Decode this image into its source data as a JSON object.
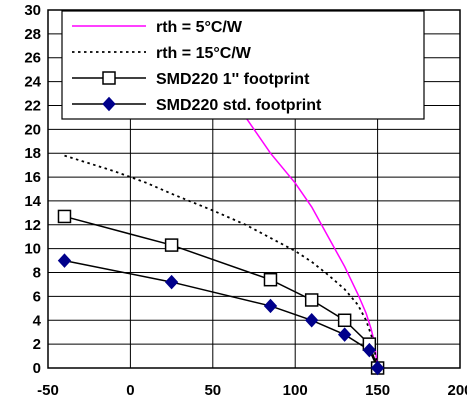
{
  "chart_data": {
    "type": "line",
    "title": "",
    "xlabel": "",
    "ylabel": "",
    "xlim": [
      -50,
      200
    ],
    "ylim": [
      0,
      30
    ],
    "x_ticks": [
      -50,
      0,
      50,
      100,
      150,
      200
    ],
    "y_ticks": [
      0,
      2,
      4,
      6,
      8,
      10,
      12,
      14,
      16,
      18,
      20,
      22,
      24,
      26,
      28,
      30
    ],
    "grid": true,
    "legend_position": "top-right",
    "series": [
      {
        "name": "rth = 5°C/W",
        "color": "#ff00ff",
        "style": "solid",
        "marker": "none",
        "x": [
          -10,
          10,
          25,
          40,
          55,
          70,
          85,
          100,
          110,
          120,
          130,
          138,
          143,
          146,
          148,
          150
        ],
        "y": [
          28,
          26,
          25,
          24,
          22.6,
          21,
          18,
          15.5,
          13.5,
          11,
          8.5,
          6.2,
          4.6,
          3.3,
          2.2,
          0
        ]
      },
      {
        "name": "rth = 15°C/W",
        "color": "#000000",
        "style": "dotted",
        "marker": "none",
        "x": [
          -40,
          -10,
          10,
          25,
          50,
          70,
          85,
          100,
          110,
          120,
          130,
          138,
          143,
          147,
          150
        ],
        "y": [
          17.8,
          16.5,
          15.5,
          14.6,
          13.2,
          12,
          10.9,
          9.8,
          8.9,
          7.8,
          6.6,
          5.3,
          4,
          2.4,
          0
        ]
      },
      {
        "name": "SMD220 1'' footprint",
        "color": "#000000",
        "style": "solid",
        "marker": "open-square",
        "x": [
          -40,
          25,
          85,
          110,
          130,
          145,
          150
        ],
        "y": [
          12.7,
          10.3,
          7.4,
          5.7,
          4,
          2,
          0
        ]
      },
      {
        "name": "SMD220 std. footprint",
        "color": "#000000",
        "marker_color": "#00008b",
        "style": "solid",
        "marker": "filled-diamond",
        "x": [
          -40,
          25,
          85,
          110,
          130,
          145,
          150
        ],
        "y": [
          9,
          7.2,
          5.2,
          4,
          2.8,
          1.5,
          0
        ]
      }
    ]
  }
}
